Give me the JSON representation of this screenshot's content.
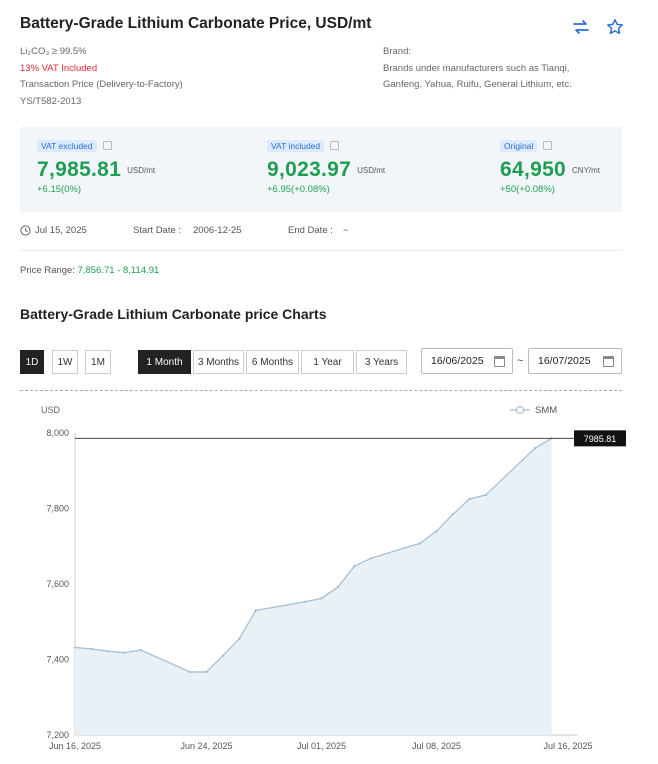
{
  "header": {
    "title": "Battery-Grade Lithium Carbonate Price, USD/mt",
    "icons": [
      "swap-icon",
      "star-icon"
    ]
  },
  "meta": {
    "spec": "Li₂CO₃ ≥ 99.5%",
    "vat": "13% VAT Included",
    "transaction": "Transaction Price (Delivery-to-Factory)",
    "standard": "YS/T582-2013",
    "brand_label": "Brand:",
    "brand_value": "Brands under manufacturers such as Tianqi, Ganfeng, Yahua, Ruifu, General Lithium, etc."
  },
  "prices": [
    {
      "tag": "VAT excluded",
      "value": "7,985.81",
      "unit": "USD/mt",
      "change": "+6.15(0%)"
    },
    {
      "tag": "VAT included",
      "value": "9,023.97",
      "unit": "USD/mt",
      "change": "+6.95(+0.08%)"
    },
    {
      "tag": "Original",
      "value": "64,950",
      "unit": "CNY/mt",
      "change": "+50(+0.08%)"
    }
  ],
  "dates": {
    "current": "Jul 15, 2025",
    "start_label": "Start Date :",
    "start_value": "2006-12-25",
    "end_label": "End Date :",
    "end_value": "~"
  },
  "range": {
    "label": "Price Range: ",
    "value": "7,856.71 - 8,114.91"
  },
  "chart_section": {
    "title": "Battery-Grade Lithium Carbonate price Charts",
    "granularity": [
      "1D",
      "1W",
      "1M"
    ],
    "granularity_selected": "1D",
    "periods": [
      "1 Month",
      "3 Months",
      "6 Months",
      "1 Year",
      "3 Years"
    ],
    "period_selected": "1 Month",
    "date_from": "16/06/2025",
    "date_to": "16/07/2025",
    "tilde": "~"
  },
  "chart_data": {
    "type": "area",
    "ylabel": "USD",
    "ylim": [
      7200,
      8000
    ],
    "yticks": [
      "8,000",
      "7,800",
      "7,600",
      "7,400",
      "7,200"
    ],
    "xtick_labels": [
      "Jun 16, 2025",
      "Jun 24, 2025",
      "Jul 01, 2025",
      "Jul 08, 2025",
      "Jul 16, 2025"
    ],
    "xtick_dates": [
      "2025-06-16",
      "2025-06-24",
      "2025-07-01",
      "2025-07-08",
      "2025-07-16"
    ],
    "legend": "SMM",
    "legend_position": "top-right",
    "last_value_label": "7985.81",
    "reference_value": 7985.81,
    "series": [
      {
        "name": "SMM",
        "x": [
          "2025-06-16",
          "2025-06-17",
          "2025-06-18",
          "2025-06-19",
          "2025-06-20",
          "2025-06-23",
          "2025-06-24",
          "2025-06-25",
          "2025-06-26",
          "2025-06-27",
          "2025-06-30",
          "2025-07-01",
          "2025-07-02",
          "2025-07-03",
          "2025-07-04",
          "2025-07-07",
          "2025-07-08",
          "2025-07-09",
          "2025-07-10",
          "2025-07-11",
          "2025-07-14",
          "2025-07-15"
        ],
        "values": [
          7432,
          7428,
          7422,
          7418,
          7425,
          7367,
          7367,
          7410,
          7455,
          7530,
          7553,
          7562,
          7592,
          7647,
          7668,
          7708,
          7740,
          7785,
          7825,
          7836,
          7960,
          7985.81
        ]
      }
    ],
    "colors": {
      "line": "#a9bfd3",
      "fill": "#e9f1f7",
      "ref_line": "#444444",
      "label_bg": "#111111"
    }
  }
}
